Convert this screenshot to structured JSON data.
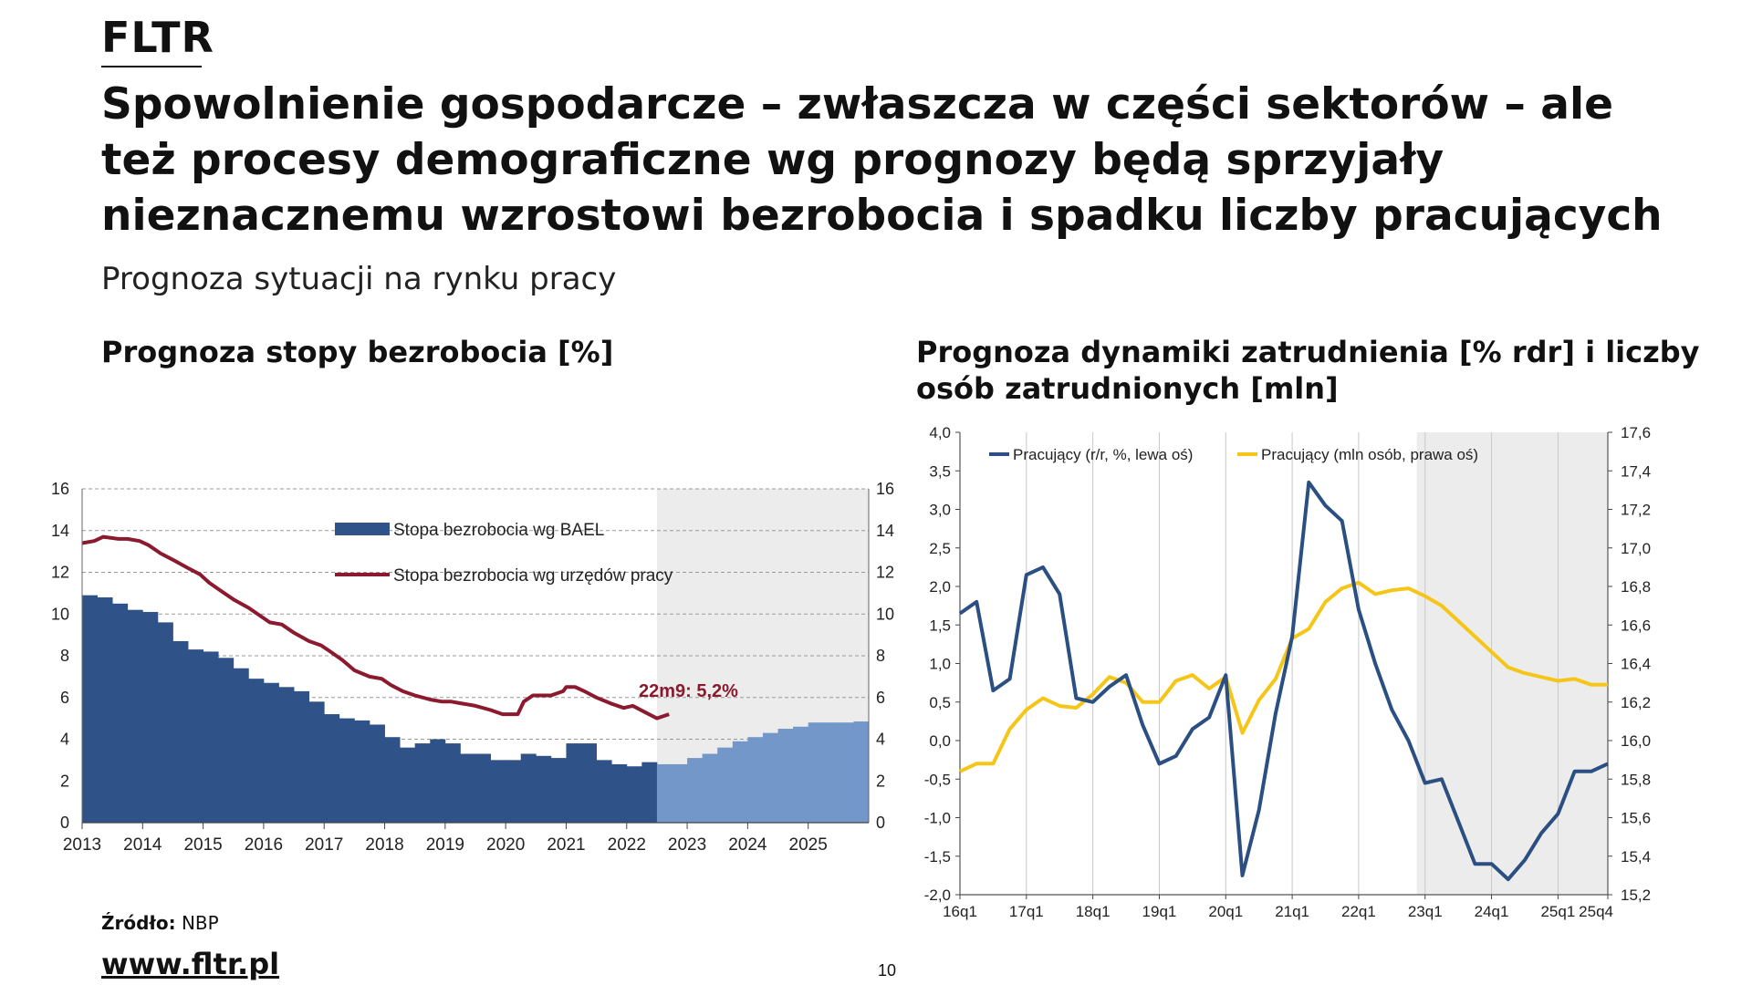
{
  "header": {
    "logo": "FLTR",
    "title": "Spowolnienie gospodarcze – zwłaszcza w części sektorów – ale też procesy demograficzne wg prognozy będą sprzyjały nieznacznemu wzrostowi bezrobocia i spadku liczby pracujących",
    "subtitle": "Prognoza sytuacji na rynku pracy"
  },
  "footer": {
    "source_label": "Źródło:",
    "source_value": "NBP",
    "url": "www.fltr.pl",
    "page_number": "10"
  },
  "colors": {
    "bael_actual": "#2f5288",
    "bael_forecast": "#7397c8",
    "registered": "#8b1a2e",
    "annotation": "#8b1a2e",
    "forecast_shade": "#ececec",
    "employment_yoy": "#2b4f82",
    "employment_mln": "#f5c518"
  },
  "chart_data": [
    {
      "type": "bar",
      "title": "Prognoza stopy bezrobocia [%]",
      "ylim": [
        0,
        16
      ],
      "yticks": [
        0,
        2,
        4,
        6,
        8,
        10,
        12,
        14,
        16
      ],
      "xlim": [
        2013,
        2026
      ],
      "xticks": [
        "2013",
        "2014",
        "2015",
        "2016",
        "2017",
        "2018",
        "2019",
        "2020",
        "2021",
        "2022",
        "2023",
        "2024",
        "2025"
      ],
      "forecast_start": 2022.5,
      "legend": [
        "Stopa bezrobocia wg BAEL",
        "Stopa bezrobocia wg urzędów pracy"
      ],
      "annotation": "22m9: 5,2%",
      "bael_start": 2013.0,
      "bael_step": 0.25,
      "bael_quarterly": [
        10.9,
        10.8,
        10.5,
        10.2,
        10.1,
        9.6,
        8.7,
        8.3,
        8.2,
        7.9,
        7.4,
        6.9,
        6.7,
        6.5,
        6.3,
        5.8,
        5.2,
        5.0,
        4.9,
        4.7,
        4.1,
        3.6,
        3.8,
        4.0,
        3.8,
        3.3,
        3.3,
        3.0,
        3.0,
        3.3,
        3.2,
        3.1,
        3.8,
        3.8,
        3.0,
        2.8,
        2.7,
        2.9,
        2.8,
        2.8,
        3.1,
        3.3,
        3.6,
        3.9,
        4.1,
        4.3,
        4.5,
        4.6,
        4.8,
        4.8,
        4.8,
        4.85
      ],
      "registered_monthly": [
        [
          2013.0,
          13.4
        ],
        [
          2013.2,
          13.5
        ],
        [
          2013.35,
          13.7
        ],
        [
          2013.6,
          13.6
        ],
        [
          2013.75,
          13.6
        ],
        [
          2013.95,
          13.5
        ],
        [
          2014.1,
          13.3
        ],
        [
          2014.3,
          12.9
        ],
        [
          2014.5,
          12.6
        ],
        [
          2014.75,
          12.2
        ],
        [
          2014.95,
          11.9
        ],
        [
          2015.1,
          11.5
        ],
        [
          2015.3,
          11.1
        ],
        [
          2015.5,
          10.7
        ],
        [
          2015.75,
          10.3
        ],
        [
          2015.95,
          9.9
        ],
        [
          2016.1,
          9.6
        ],
        [
          2016.3,
          9.5
        ],
        [
          2016.5,
          9.1
        ],
        [
          2016.75,
          8.7
        ],
        [
          2016.95,
          8.5
        ],
        [
          2017.1,
          8.2
        ],
        [
          2017.3,
          7.8
        ],
        [
          2017.5,
          7.3
        ],
        [
          2017.75,
          7.0
        ],
        [
          2017.95,
          6.9
        ],
        [
          2018.1,
          6.6
        ],
        [
          2018.3,
          6.3
        ],
        [
          2018.5,
          6.1
        ],
        [
          2018.75,
          5.9
        ],
        [
          2018.95,
          5.8
        ],
        [
          2019.1,
          5.8
        ],
        [
          2019.3,
          5.7
        ],
        [
          2019.5,
          5.6
        ],
        [
          2019.75,
          5.4
        ],
        [
          2019.95,
          5.2
        ],
        [
          2020.1,
          5.2
        ],
        [
          2020.2,
          5.2
        ],
        [
          2020.3,
          5.8
        ],
        [
          2020.45,
          6.1
        ],
        [
          2020.6,
          6.1
        ],
        [
          2020.75,
          6.1
        ],
        [
          2020.95,
          6.3
        ],
        [
          2021.0,
          6.5
        ],
        [
          2021.15,
          6.5
        ],
        [
          2021.3,
          6.3
        ],
        [
          2021.5,
          6.0
        ],
        [
          2021.75,
          5.7
        ],
        [
          2021.95,
          5.5
        ],
        [
          2022.1,
          5.6
        ],
        [
          2022.3,
          5.3
        ],
        [
          2022.5,
          5.0
        ],
        [
          2022.7,
          5.2
        ]
      ]
    },
    {
      "type": "line",
      "title": "Prognoza dynamiki zatrudnienia [% rdr] i liczby osób zatrudnionych [mln]",
      "ylim_left": [
        -2.0,
        4.0
      ],
      "ylim_right": [
        15.2,
        17.6
      ],
      "yticks_left": [
        "-2,0",
        "-1,5",
        "-1,0",
        "-0,5",
        "0,0",
        "0,5",
        "1,0",
        "1,5",
        "2,0",
        "2,5",
        "3,0",
        "3,5",
        "4,0"
      ],
      "yticks_right": [
        "15,2",
        "15,4",
        "15,6",
        "15,8",
        "16,0",
        "16,2",
        "16,4",
        "16,6",
        "16,8",
        "17,0",
        "17,2",
        "17,4",
        "17,6"
      ],
      "xticks": [
        "16q1",
        "17q1",
        "18q1",
        "19q1",
        "20q1",
        "21q1",
        "22q1",
        "23q1",
        "24q1",
        "25q1",
        "25q4"
      ],
      "xtick_quarters": [
        0,
        4,
        8,
        12,
        16,
        20,
        24,
        28,
        32,
        36,
        39
      ],
      "quarters_total": 40,
      "forecast_start_quarter": 27.5,
      "series": [
        {
          "name": "Pracujący (r/r, %, lewa oś)",
          "axis": "left",
          "values": [
            1.65,
            1.8,
            0.65,
            0.8,
            2.15,
            2.25,
            1.9,
            0.55,
            0.5,
            0.7,
            0.85,
            0.2,
            -0.3,
            -0.2,
            0.15,
            0.3,
            0.85,
            -1.75,
            -0.9,
            0.35,
            1.35,
            3.35,
            3.05,
            2.85,
            1.7,
            1.0,
            0.4,
            0.0,
            -0.55,
            -0.5,
            -1.05,
            -1.6,
            -1.6,
            -1.8,
            -1.55,
            -1.2,
            -0.95,
            -0.4,
            -0.4,
            -0.3
          ]
        },
        {
          "name": "Pracujący (mln osób, prawa oś)",
          "axis": "right",
          "values": [
            15.84,
            15.88,
            15.88,
            16.06,
            16.16,
            16.22,
            16.18,
            16.17,
            16.24,
            16.33,
            16.3,
            16.2,
            16.2,
            16.31,
            16.34,
            16.27,
            16.33,
            16.04,
            16.21,
            16.32,
            16.53,
            16.58,
            16.72,
            16.79,
            16.82,
            16.76,
            16.78,
            16.79,
            16.75,
            16.7,
            16.62,
            16.54,
            16.46,
            16.38,
            16.35,
            16.33,
            16.31,
            16.32,
            16.29,
            16.29
          ]
        }
      ]
    }
  ]
}
